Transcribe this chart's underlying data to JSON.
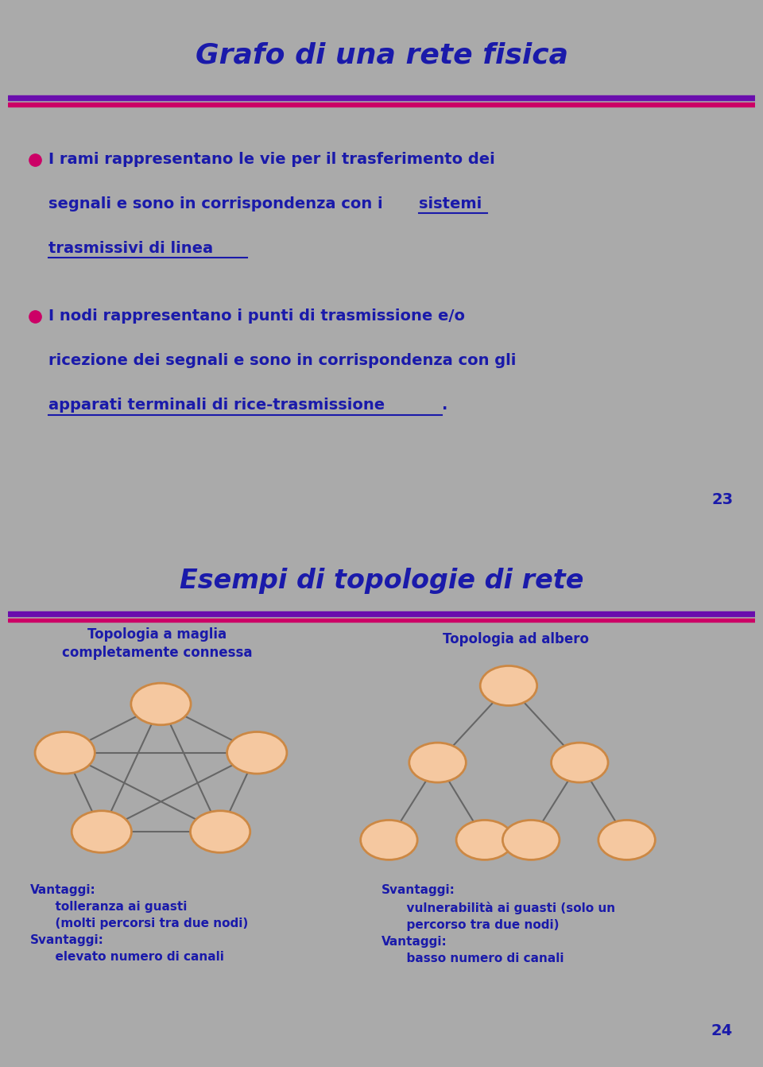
{
  "slide1_title": "Grafo di una rete fisica",
  "slide1_bg": "#F5C8A0",
  "slide2_bg": "#F5C8A0",
  "title_color": "#1a1aaa",
  "border_purple": "#6a0dad",
  "border_pink": "#cc0066",
  "bullet_color": "#cc0066",
  "text_color": "#1a1aaa",
  "page1_num": "23",
  "slide2_title": "Esempi di topologie di rete",
  "left_label_line1": "Topologia a maglia",
  "left_label_line2": "completamente connessa",
  "right_label": "Topologia ad albero",
  "left_vantaggi": "Vantaggi:\n      tolleranza ai guasti\n      (molti percorsi tra due nodi)\nSvantaggi:\n      elevato numero di canali",
  "right_svantaggi": "Svantaggi:\n      vulnerabilità ai guasti (solo un\n      percorso tra due nodi)\nVantaggi:\n      basso numero di canali",
  "page2_num": "24",
  "node_fill": "#F5C8A0",
  "node_edge": "#cc8844",
  "edge_color": "#666666",
  "fig_bg": "#aaaaaa"
}
